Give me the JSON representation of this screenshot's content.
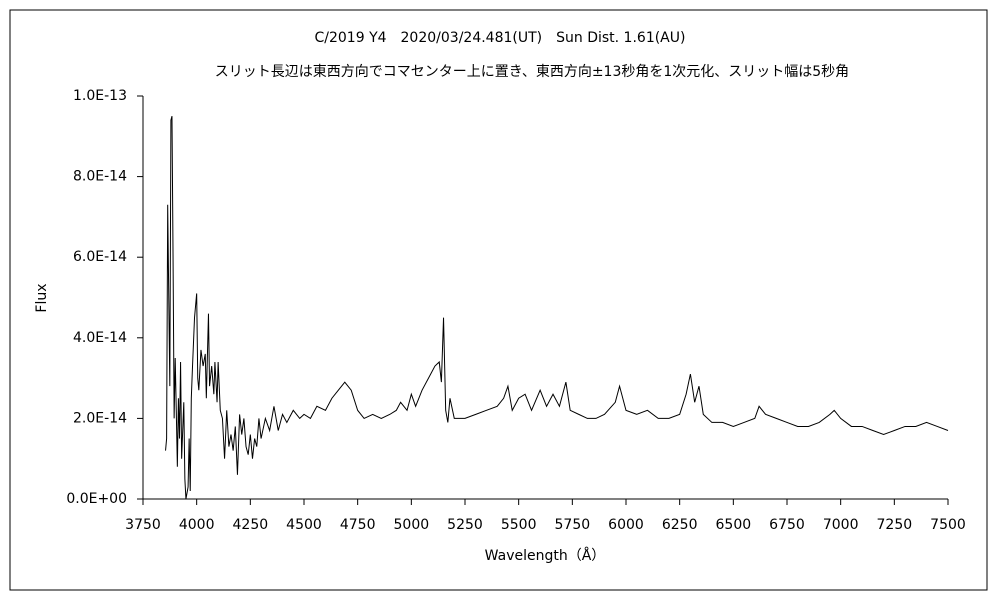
{
  "chart_data": {
    "type": "line",
    "title": "C/2019 Y4　2020/03/24.481(UT)　Sun Dist. 1.61(AU)",
    "subtitle": "スリット長辺は東西方向でコマセンター上に置き、東西方向±13秒角を1次元化、スリット幅は5秒角",
    "xlabel": "Wavelength（Å）",
    "ylabel": "Flux",
    "x": [
      3855,
      3860,
      3865,
      3870,
      3875,
      3880,
      3885,
      3890,
      3895,
      3900,
      3905,
      3910,
      3915,
      3920,
      3925,
      3930,
      3940,
      3945,
      3950,
      3960,
      3965,
      3970,
      3975,
      3980,
      3990,
      4000,
      4005,
      4010,
      4020,
      4030,
      4040,
      4045,
      4055,
      4060,
      4070,
      4080,
      4085,
      4095,
      4100,
      4110,
      4120,
      4130,
      4140,
      4150,
      4160,
      4170,
      4180,
      4190,
      4200,
      4210,
      4220,
      4230,
      4240,
      4250,
      4260,
      4270,
      4280,
      4290,
      4300,
      4320,
      4340,
      4360,
      4380,
      4400,
      4420,
      4450,
      4480,
      4500,
      4530,
      4560,
      4600,
      4630,
      4660,
      4690,
      4720,
      4750,
      4780,
      4820,
      4860,
      4900,
      4930,
      4950,
      4980,
      5000,
      5020,
      5050,
      5080,
      5110,
      5130,
      5140,
      5150,
      5160,
      5170,
      5180,
      5200,
      5250,
      5300,
      5350,
      5400,
      5430,
      5450,
      5470,
      5500,
      5530,
      5560,
      5600,
      5630,
      5660,
      5690,
      5720,
      5740,
      5780,
      5820,
      5860,
      5900,
      5950,
      5970,
      6000,
      6050,
      6100,
      6150,
      6200,
      6250,
      6280,
      6300,
      6320,
      6340,
      6360,
      6400,
      6450,
      6500,
      6550,
      6600,
      6620,
      6650,
      6700,
      6750,
      6800,
      6850,
      6900,
      6950,
      6970,
      7000,
      7050,
      7100,
      7150,
      7200,
      7250,
      7300,
      7350,
      7400,
      7450,
      7500
    ],
    "series": [
      {
        "color": "#000000",
        "values": [
          1.2e-14,
          1.5e-14,
          7.3e-14,
          5e-14,
          2.8e-14,
          9.4e-14,
          9.5e-14,
          6e-14,
          2e-14,
          3.5e-14,
          2.2e-14,
          8e-15,
          2.5e-14,
          1.5e-14,
          3.4e-14,
          1e-14,
          2.4e-14,
          5e-15,
          0,
          3e-15,
          1.5e-14,
          2e-15,
          2.5e-14,
          3.2e-14,
          4.5e-14,
          5.1e-14,
          3e-14,
          2.7e-14,
          3.7e-14,
          3.3e-14,
          3.6e-14,
          2.5e-14,
          4.6e-14,
          2.8e-14,
          3.3e-14,
          2.6e-14,
          3.4e-14,
          2.4e-14,
          3.4e-14,
          2.2e-14,
          2e-14,
          1e-14,
          2.2e-14,
          1.3e-14,
          1.6e-14,
          1.2e-14,
          1.8e-14,
          6e-15,
          2.1e-14,
          1.6e-14,
          2e-14,
          1.3e-14,
          1.1e-14,
          1.6e-14,
          1e-14,
          1.5e-14,
          1.3e-14,
          2e-14,
          1.5e-14,
          2e-14,
          1.7e-14,
          2.3e-14,
          1.7e-14,
          2.1e-14,
          1.9e-14,
          2.2e-14,
          2e-14,
          2.1e-14,
          2e-14,
          2.3e-14,
          2.2e-14,
          2.5e-14,
          2.7e-14,
          2.9e-14,
          2.7e-14,
          2.2e-14,
          2e-14,
          2.1e-14,
          2e-14,
          2.1e-14,
          2.2e-14,
          2.4e-14,
          2.2e-14,
          2.6e-14,
          2.3e-14,
          2.7e-14,
          3e-14,
          3.3e-14,
          3.4e-14,
          2.9e-14,
          4.5e-14,
          2.2e-14,
          1.9e-14,
          2.5e-14,
          2e-14,
          2e-14,
          2.1e-14,
          2.2e-14,
          2.3e-14,
          2.5e-14,
          2.8e-14,
          2.2e-14,
          2.5e-14,
          2.6e-14,
          2.2e-14,
          2.7e-14,
          2.3e-14,
          2.6e-14,
          2.3e-14,
          2.9e-14,
          2.2e-14,
          2.1e-14,
          2e-14,
          2e-14,
          2.1e-14,
          2.4e-14,
          2.8e-14,
          2.2e-14,
          2.1e-14,
          2.2e-14,
          2e-14,
          2e-14,
          2.1e-14,
          2.6e-14,
          3.1e-14,
          2.4e-14,
          2.8e-14,
          2.1e-14,
          1.9e-14,
          1.9e-14,
          1.8e-14,
          1.9e-14,
          2e-14,
          2.3e-14,
          2.1e-14,
          2e-14,
          1.9e-14,
          1.8e-14,
          1.8e-14,
          1.9e-14,
          2.1e-14,
          2.2e-14,
          2e-14,
          1.8e-14,
          1.8e-14,
          1.7e-14,
          1.6e-14,
          1.7e-14,
          1.8e-14,
          1.8e-14,
          1.9e-14,
          1.8e-14,
          1.7e-14
        ]
      }
    ],
    "xlim": [
      3750,
      7500
    ],
    "xticks": [
      3750,
      4000,
      4250,
      4500,
      4750,
      5000,
      5250,
      5500,
      5750,
      6000,
      6250,
      6500,
      6750,
      7000,
      7250,
      7500
    ],
    "ylim": [
      0,
      1e-13
    ],
    "yticks": [
      {
        "value": 0,
        "label": "0.0E+00"
      },
      {
        "value": 2e-14,
        "label": "2.0E-14"
      },
      {
        "value": 4e-14,
        "label": "4.0E-14"
      },
      {
        "value": 6e-14,
        "label": "6.0E-14"
      },
      {
        "value": 8e-14,
        "label": "8.0E-14"
      },
      {
        "value": 1e-13,
        "label": "1.0E-13"
      }
    ]
  }
}
